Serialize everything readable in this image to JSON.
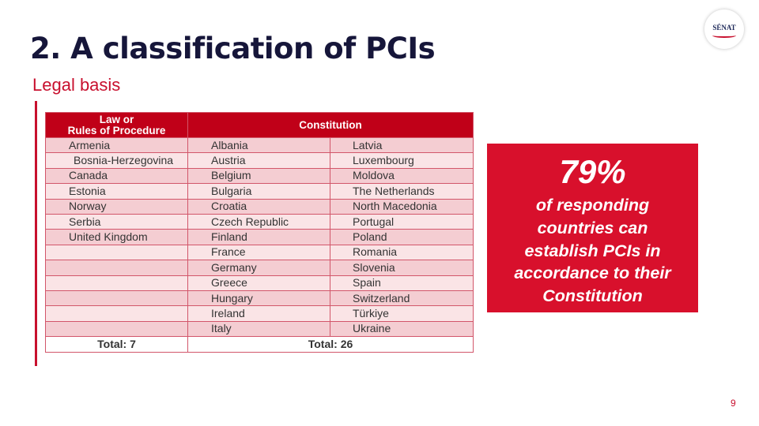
{
  "slide": {
    "title": "2. A classification of PCIs",
    "subtitle": "Legal basis",
    "page_number": "9",
    "logo_text": "SÉNAT"
  },
  "table": {
    "header_col1_line1": "Law or",
    "header_col1_line2": "Rules of Procedure",
    "header_col2": "Constitution",
    "rows": [
      [
        "Armenia",
        "Albania",
        "Latvia"
      ],
      [
        "Bosnia-Herzegovina",
        "Austria",
        "Luxembourg"
      ],
      [
        "Canada",
        "Belgium",
        "Moldova"
      ],
      [
        "Estonia",
        "Bulgaria",
        "The Netherlands"
      ],
      [
        "Norway",
        "Croatia",
        "North Macedonia"
      ],
      [
        "Serbia",
        "Czech Republic",
        "Portugal"
      ],
      [
        "United Kingdom",
        "Finland",
        "Poland"
      ],
      [
        "",
        "France",
        "Romania"
      ],
      [
        "",
        "Germany",
        "Slovenia"
      ],
      [
        "",
        "Greece",
        "Spain"
      ],
      [
        "",
        "Hungary",
        "Switzerland"
      ],
      [
        "",
        "Ireland",
        "Türkiye"
      ],
      [
        "",
        "Italy",
        "Ukraine"
      ]
    ],
    "total_col1": "Total: 7",
    "total_col2": "Total: 26"
  },
  "stat": {
    "value": "79%",
    "lines": [
      "of responding",
      "countries can",
      "establish PCIs in",
      "accordance to their",
      "Constitution"
    ]
  },
  "colors": {
    "accent_red": "#c8102e",
    "header_red": "#c00018",
    "stat_box_red": "#d8102c",
    "title_navy": "#16163a"
  }
}
